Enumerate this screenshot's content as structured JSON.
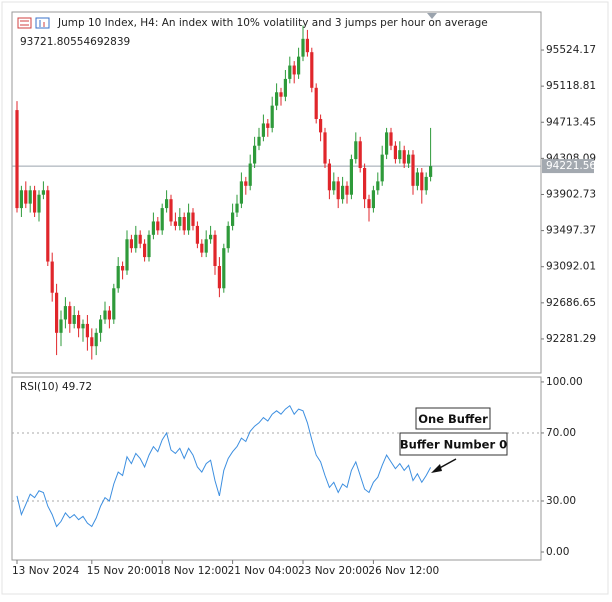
{
  "chart_data": [
    {
      "type": "candlestick",
      "title": "Jump 10 Index, H4:  An index with 10% volatility and 3 jumps per hour on average",
      "subtitle": "93721.80554692839",
      "up_color": "#2e9a3a",
      "down_color": "#e0262b",
      "last_line_color": "#9aa3ad",
      "ylim": [
        91899,
        95951
      ],
      "yticks": [
        92281.29,
        92686.65,
        93092.01,
        93497.37,
        93902.73,
        94308.09,
        94713.45,
        95118.81,
        95524.17
      ],
      "categories": [
        "13 Nov 2024",
        null,
        null,
        null,
        null,
        null,
        null,
        null,
        null,
        null,
        null,
        null,
        null,
        null,
        null,
        null,
        null,
        "15 Nov 20:00",
        null,
        null,
        null,
        null,
        null,
        null,
        null,
        null,
        null,
        null,
        null,
        null,
        null,
        null,
        null,
        "18 Nov 12:00",
        null,
        null,
        null,
        null,
        null,
        null,
        null,
        null,
        null,
        null,
        null,
        null,
        null,
        null,
        null,
        "21 Nov 04:00",
        null,
        null,
        null,
        null,
        null,
        null,
        null,
        null,
        null,
        null,
        null,
        null,
        null,
        null,
        null,
        "23 Nov 20:00",
        null,
        null,
        null,
        null,
        null,
        null,
        null,
        null,
        null,
        null,
        null,
        null,
        null,
        null,
        null,
        "26 Nov 12:00",
        null,
        null,
        null,
        null,
        null,
        null,
        null,
        null,
        null,
        null,
        null,
        null,
        null
      ],
      "ohlc": [
        [
          94850,
          94950,
          93700,
          93750
        ],
        [
          93750,
          94000,
          93650,
          93950
        ],
        [
          93950,
          94050,
          93750,
          93800
        ],
        [
          93800,
          94000,
          93700,
          93950
        ],
        [
          93950,
          94000,
          93650,
          93700
        ],
        [
          93700,
          93950,
          93600,
          93900
        ],
        [
          93900,
          94050,
          93850,
          93950
        ],
        [
          93950,
          94000,
          93100,
          93150
        ],
        [
          93150,
          93250,
          92700,
          92800
        ],
        [
          92800,
          92900,
          92100,
          92350
        ],
        [
          92350,
          92600,
          92200,
          92500
        ],
        [
          92500,
          92750,
          92400,
          92650
        ],
        [
          92650,
          92700,
          92350,
          92450
        ],
        [
          92450,
          92650,
          92400,
          92550
        ],
        [
          92550,
          92600,
          92300,
          92400
        ],
        [
          92400,
          92500,
          92250,
          92450
        ],
        [
          92450,
          92550,
          92150,
          92300
        ],
        [
          92300,
          92400,
          92050,
          92200
        ],
        [
          92200,
          92400,
          92100,
          92350
        ],
        [
          92350,
          92550,
          92250,
          92500
        ],
        [
          92500,
          92700,
          92450,
          92600
        ],
        [
          92600,
          92650,
          92400,
          92500
        ],
        [
          92500,
          92900,
          92450,
          92850
        ],
        [
          92850,
          93200,
          92800,
          93100
        ],
        [
          93100,
          93150,
          92950,
          93050
        ],
        [
          93050,
          93500,
          93000,
          93400
        ],
        [
          93400,
          93450,
          93250,
          93300
        ],
        [
          93300,
          93550,
          93250,
          93450
        ],
        [
          93450,
          93500,
          93300,
          93350
        ],
        [
          93350,
          93400,
          93150,
          93200
        ],
        [
          93200,
          93500,
          93150,
          93450
        ],
        [
          93450,
          93700,
          93400,
          93600
        ],
        [
          93600,
          93650,
          93450,
          93500
        ],
        [
          93500,
          93800,
          93450,
          93750
        ],
        [
          93750,
          93950,
          93700,
          93850
        ],
        [
          93850,
          93900,
          93550,
          93600
        ],
        [
          93600,
          93700,
          93500,
          93550
        ],
        [
          93550,
          93750,
          93500,
          93650
        ],
        [
          93650,
          93700,
          93450,
          93500
        ],
        [
          93500,
          93800,
          93450,
          93700
        ],
        [
          93700,
          93750,
          93500,
          93550
        ],
        [
          93550,
          93600,
          93300,
          93350
        ],
        [
          93350,
          93400,
          93200,
          93250
        ],
        [
          93250,
          93500,
          93200,
          93400
        ],
        [
          93400,
          93550,
          93350,
          93450
        ],
        [
          93450,
          93500,
          93000,
          93100
        ],
        [
          93100,
          93200,
          92750,
          92850
        ],
        [
          92850,
          93350,
          92800,
          93300
        ],
        [
          93300,
          93600,
          93250,
          93550
        ],
        [
          93550,
          93800,
          93500,
          93700
        ],
        [
          93700,
          93900,
          93650,
          93800
        ],
        [
          93800,
          94150,
          93750,
          94050
        ],
        [
          94050,
          94100,
          93900,
          94000
        ],
        [
          94000,
          94350,
          93950,
          94250
        ],
        [
          94250,
          94550,
          94200,
          94450
        ],
        [
          94450,
          94650,
          94400,
          94550
        ],
        [
          94550,
          94800,
          94500,
          94700
        ],
        [
          94700,
          94750,
          94550,
          94650
        ],
        [
          94650,
          95000,
          94600,
          94900
        ],
        [
          94900,
          95150,
          94850,
          95050
        ],
        [
          95050,
          95100,
          94900,
          95000
        ],
        [
          95000,
          95300,
          94950,
          95200
        ],
        [
          95200,
          95450,
          95150,
          95350
        ],
        [
          95350,
          95400,
          95150,
          95250
        ],
        [
          95250,
          95550,
          95200,
          95450
        ],
        [
          95450,
          95800,
          95400,
          95650
        ],
        [
          95650,
          95750,
          95450,
          95500
        ],
        [
          95500,
          95550,
          95050,
          95100
        ],
        [
          95100,
          95150,
          94700,
          94750
        ],
        [
          94750,
          94800,
          94500,
          94600
        ],
        [
          94600,
          94650,
          94200,
          94250
        ],
        [
          94250,
          94300,
          93850,
          93950
        ],
        [
          93950,
          94150,
          93900,
          94050
        ],
        [
          94050,
          94100,
          93750,
          93850
        ],
        [
          93850,
          94100,
          93800,
          94000
        ],
        [
          94000,
          94050,
          93800,
          93900
        ],
        [
          93900,
          94350,
          93850,
          94300
        ],
        [
          94300,
          94600,
          94250,
          94500
        ],
        [
          94500,
          94550,
          94150,
          94200
        ],
        [
          94200,
          94250,
          93750,
          93850
        ],
        [
          93850,
          93900,
          93600,
          93750
        ],
        [
          93750,
          94000,
          93700,
          93950
        ],
        [
          93950,
          94150,
          93900,
          94050
        ],
        [
          94050,
          94450,
          94000,
          94350
        ],
        [
          94350,
          94650,
          94300,
          94600
        ],
        [
          94600,
          94650,
          94400,
          94450
        ],
        [
          94450,
          94500,
          94250,
          94300
        ],
        [
          94300,
          94500,
          94250,
          94400
        ],
        [
          94400,
          94450,
          94200,
          94250
        ],
        [
          94250,
          94400,
          94200,
          94350
        ],
        [
          94350,
          94400,
          93900,
          94000
        ],
        [
          94000,
          94200,
          93950,
          94150
        ],
        [
          94150,
          94200,
          93800,
          93950
        ],
        [
          93950,
          94150,
          93900,
          94100
        ],
        [
          94100,
          94650,
          94050,
          94221.56
        ]
      ]
    },
    {
      "type": "line",
      "title": "RSI(10)",
      "color": "#3d8fe0",
      "ylim": [
        -4.7,
        102.9
      ],
      "yticks": [
        {
          "value": 0,
          "label": "0.00"
        },
        {
          "value": 30,
          "label": "30.00"
        },
        {
          "value": 70,
          "label": "70.00"
        },
        {
          "value": 100,
          "label": "100.00"
        }
      ],
      "levels": [
        70,
        30
      ],
      "values": [
        33,
        22,
        28,
        34,
        32,
        36,
        35,
        27,
        22,
        15,
        18,
        23,
        20,
        22,
        19,
        21,
        17,
        15,
        20,
        27,
        32,
        30,
        40,
        47,
        45,
        56,
        52,
        58,
        55,
        50,
        57,
        62,
        59,
        66,
        70,
        60,
        58,
        61,
        55,
        61,
        57,
        50,
        47,
        52,
        54,
        42,
        33,
        48,
        55,
        59,
        62,
        67,
        65,
        71,
        74,
        76,
        79,
        77,
        81,
        83,
        81,
        84,
        86,
        81,
        84,
        83,
        76,
        66,
        57,
        53,
        45,
        38,
        41,
        35,
        40,
        38,
        48,
        53,
        45,
        37,
        35,
        41,
        44,
        51,
        57,
        53,
        49,
        52,
        48,
        51,
        42,
        46,
        41,
        45,
        49.72
      ],
      "annotations": [
        "One Buffer",
        "Buffer Number 0"
      ]
    }
  ]
}
